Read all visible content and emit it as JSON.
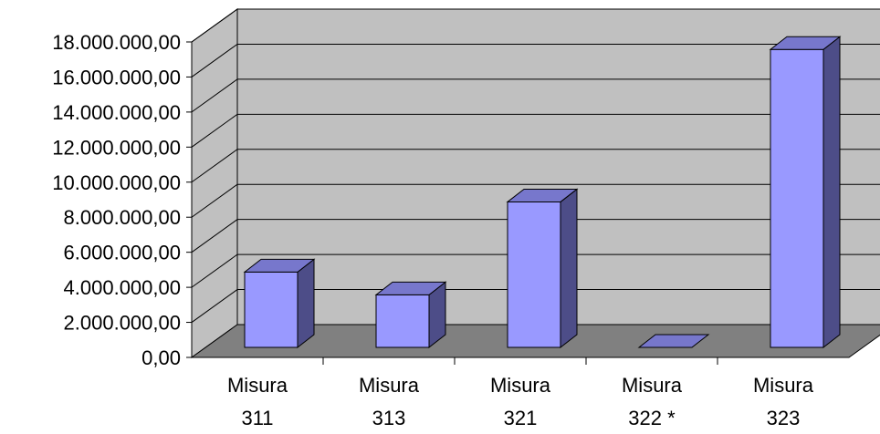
{
  "chart_data": {
    "type": "bar",
    "style": "3d-column",
    "categories": [
      [
        "Misura",
        "311"
      ],
      [
        "Misura",
        "313"
      ],
      [
        "Misura",
        "321"
      ],
      [
        "Misura",
        "322 *"
      ],
      [
        "Misura",
        "323"
      ]
    ],
    "values": [
      4300000,
      3000000,
      8300000,
      0,
      17000000
    ],
    "ylim": [
      0,
      18000000
    ],
    "yticks": [
      "0,00",
      "2.000.000,00",
      "4.000.000,00",
      "6.000.000,00",
      "8.000.000,00",
      "10.000.000,00",
      "12.000.000,00",
      "14.000.000,00",
      "16.000.000,00",
      "18.000.000,00"
    ],
    "grid": true,
    "legend": "none",
    "colors": {
      "bar_front": "#9999ff",
      "bar_top": "#7777cc",
      "bar_side": "#4d4d88",
      "back_wall": "#c0c0c0",
      "floor": "#808080",
      "gridline": "#000000"
    }
  }
}
